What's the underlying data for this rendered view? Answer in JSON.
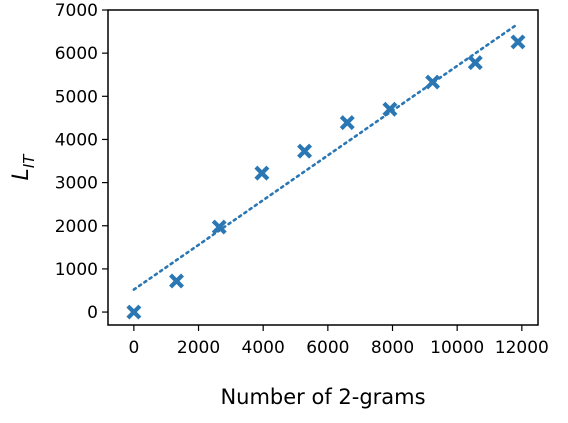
{
  "chart_data": {
    "type": "scatter",
    "xlabel": "Number of 2-grams",
    "ylabel_main": "L",
    "ylabel_sub": "IT",
    "xlim": [
      -800,
      12500
    ],
    "ylim": [
      -300,
      7000
    ],
    "xticks": [
      0,
      2000,
      4000,
      6000,
      8000,
      10000,
      12000
    ],
    "yticks": [
      0,
      1000,
      2000,
      3000,
      4000,
      5000,
      6000,
      7000
    ],
    "grid": false,
    "legend": "none",
    "color": "#2a77b4",
    "series": [
      {
        "marker": "x-filled",
        "x": [
          0,
          1320,
          2640,
          3960,
          5280,
          6600,
          7920,
          9240,
          10560,
          11880
        ],
        "y": [
          0,
          720,
          1970,
          3220,
          3730,
          4390,
          4700,
          5330,
          5780,
          6260
        ]
      }
    ],
    "trend_line": {
      "style": "dotted",
      "x": [
        0,
        11880
      ],
      "y": [
        520,
        6680
      ]
    }
  }
}
